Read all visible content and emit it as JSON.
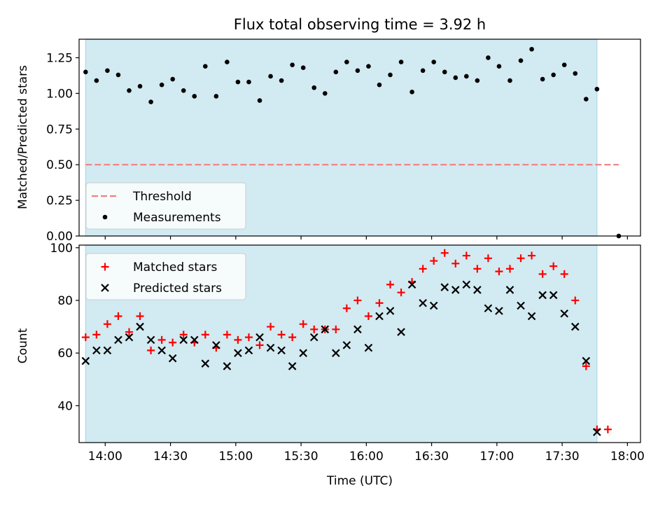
{
  "chart_data": {
    "title": "Flux total observing time = 3.92 h",
    "xlabel": "Time (UTC)",
    "x_ticks": [
      "14:00",
      "14:30",
      "15:00",
      "15:30",
      "16:00",
      "16:30",
      "17:00",
      "17:30",
      "18:00"
    ],
    "x_tick_hours": [
      14.0,
      14.5,
      15.0,
      15.5,
      16.0,
      16.5,
      17.0,
      17.5,
      18.0
    ],
    "shaded_interval": [
      "13:51",
      "17:46"
    ],
    "colors": {
      "shade": "#add8e6",
      "threshold": "#f08080",
      "matched": "#ff0000",
      "predicted": "#000000",
      "points": "#000000"
    },
    "panels": [
      {
        "type": "scatter",
        "ylabel": "Matched/Predicted stars",
        "ylim": [
          0,
          1.38
        ],
        "y_ticks": [
          "0.00",
          "0.25",
          "0.50",
          "0.75",
          "1.00",
          "1.25"
        ],
        "threshold": {
          "name": "Threshold",
          "y": 0.5,
          "x_range": [
            "13:51",
            "17:56"
          ]
        },
        "legend": {
          "location": "lower-left",
          "entries": [
            "Threshold",
            "Measurements"
          ]
        },
        "series": [
          {
            "name": "Measurements",
            "marker": "dot",
            "x": [
              "13:51",
              "13:56",
              "14:01",
              "14:06",
              "14:11",
              "14:16",
              "14:21",
              "14:26",
              "14:31",
              "14:36",
              "14:41",
              "14:46",
              "14:51",
              "14:56",
              "15:01",
              "15:06",
              "15:11",
              "15:16",
              "15:21",
              "15:26",
              "15:31",
              "15:36",
              "15:41",
              "15:46",
              "15:51",
              "15:56",
              "16:01",
              "16:06",
              "16:11",
              "16:16",
              "16:21",
              "16:26",
              "16:31",
              "16:36",
              "16:41",
              "16:46",
              "16:51",
              "16:56",
              "17:01",
              "17:06",
              "17:11",
              "17:16",
              "17:21",
              "17:26",
              "17:31",
              "17:36",
              "17:41",
              "17:46",
              "17:56"
            ],
            "y": [
              1.15,
              1.09,
              1.16,
              1.13,
              1.02,
              1.05,
              0.94,
              1.06,
              1.1,
              1.02,
              0.98,
              1.19,
              0.98,
              1.22,
              1.08,
              1.08,
              0.95,
              1.12,
              1.09,
              1.2,
              1.18,
              1.04,
              1.0,
              1.15,
              1.22,
              1.16,
              1.19,
              1.06,
              1.13,
              1.22,
              1.01,
              1.16,
              1.22,
              1.15,
              1.11,
              1.12,
              1.09,
              1.25,
              1.19,
              1.09,
              1.23,
              1.31,
              1.1,
              1.13,
              1.2,
              1.14,
              0.96,
              1.03,
              0.0
            ]
          }
        ]
      },
      {
        "type": "scatter",
        "ylabel": "Count",
        "ylim": [
          26,
          101
        ],
        "y_ticks": [
          "40",
          "60",
          "80",
          "100"
        ],
        "legend": {
          "location": "top-left",
          "entries": [
            "Matched stars",
            "Predicted stars"
          ]
        },
        "series": [
          {
            "name": "Matched stars",
            "marker": "plus",
            "x": [
              "13:51",
              "13:56",
              "14:01",
              "14:06",
              "14:11",
              "14:16",
              "14:21",
              "14:26",
              "14:31",
              "14:36",
              "14:41",
              "14:46",
              "14:51",
              "14:56",
              "15:01",
              "15:06",
              "15:11",
              "15:16",
              "15:21",
              "15:26",
              "15:31",
              "15:36",
              "15:41",
              "15:46",
              "15:51",
              "15:56",
              "16:01",
              "16:06",
              "16:11",
              "16:16",
              "16:21",
              "16:26",
              "16:31",
              "16:36",
              "16:41",
              "16:46",
              "16:51",
              "16:56",
              "17:01",
              "17:06",
              "17:11",
              "17:16",
              "17:21",
              "17:26",
              "17:31",
              "17:36",
              "17:41",
              "17:46",
              "17:51"
            ],
            "y": [
              66,
              67,
              71,
              74,
              68,
              74,
              61,
              65,
              64,
              67,
              64,
              67,
              62,
              67,
              65,
              66,
              63,
              70,
              67,
              66,
              71,
              69,
              69,
              69,
              77,
              80,
              74,
              79,
              86,
              83,
              87,
              92,
              95,
              98,
              94,
              97,
              92,
              96,
              91,
              92,
              96,
              97,
              90,
              93,
              90,
              80,
              55,
              31,
              31
            ]
          },
          {
            "name": "Predicted stars",
            "marker": "cross",
            "x": [
              "13:51",
              "13:56",
              "14:01",
              "14:06",
              "14:11",
              "14:16",
              "14:21",
              "14:26",
              "14:31",
              "14:36",
              "14:41",
              "14:46",
              "14:51",
              "14:56",
              "15:01",
              "15:06",
              "15:11",
              "15:16",
              "15:21",
              "15:26",
              "15:31",
              "15:36",
              "15:41",
              "15:46",
              "15:51",
              "15:56",
              "16:01",
              "16:06",
              "16:11",
              "16:16",
              "16:21",
              "16:26",
              "16:31",
              "16:36",
              "16:41",
              "16:46",
              "16:51",
              "16:56",
              "17:01",
              "17:06",
              "17:11",
              "17:16",
              "17:21",
              "17:26",
              "17:31",
              "17:36",
              "17:41",
              "17:46"
            ],
            "y": [
              57,
              61,
              61,
              65,
              66,
              70,
              65,
              61,
              58,
              65,
              65,
              56,
              63,
              55,
              60,
              61,
              66,
              62,
              61,
              55,
              60,
              66,
              69,
              60,
              63,
              69,
              62,
              74,
              76,
              68,
              86,
              79,
              78,
              85,
              84,
              86,
              84,
              77,
              76,
              84,
              78,
              74,
              82,
              82,
              75,
              70,
              57,
              30
            ]
          }
        ]
      }
    ]
  }
}
